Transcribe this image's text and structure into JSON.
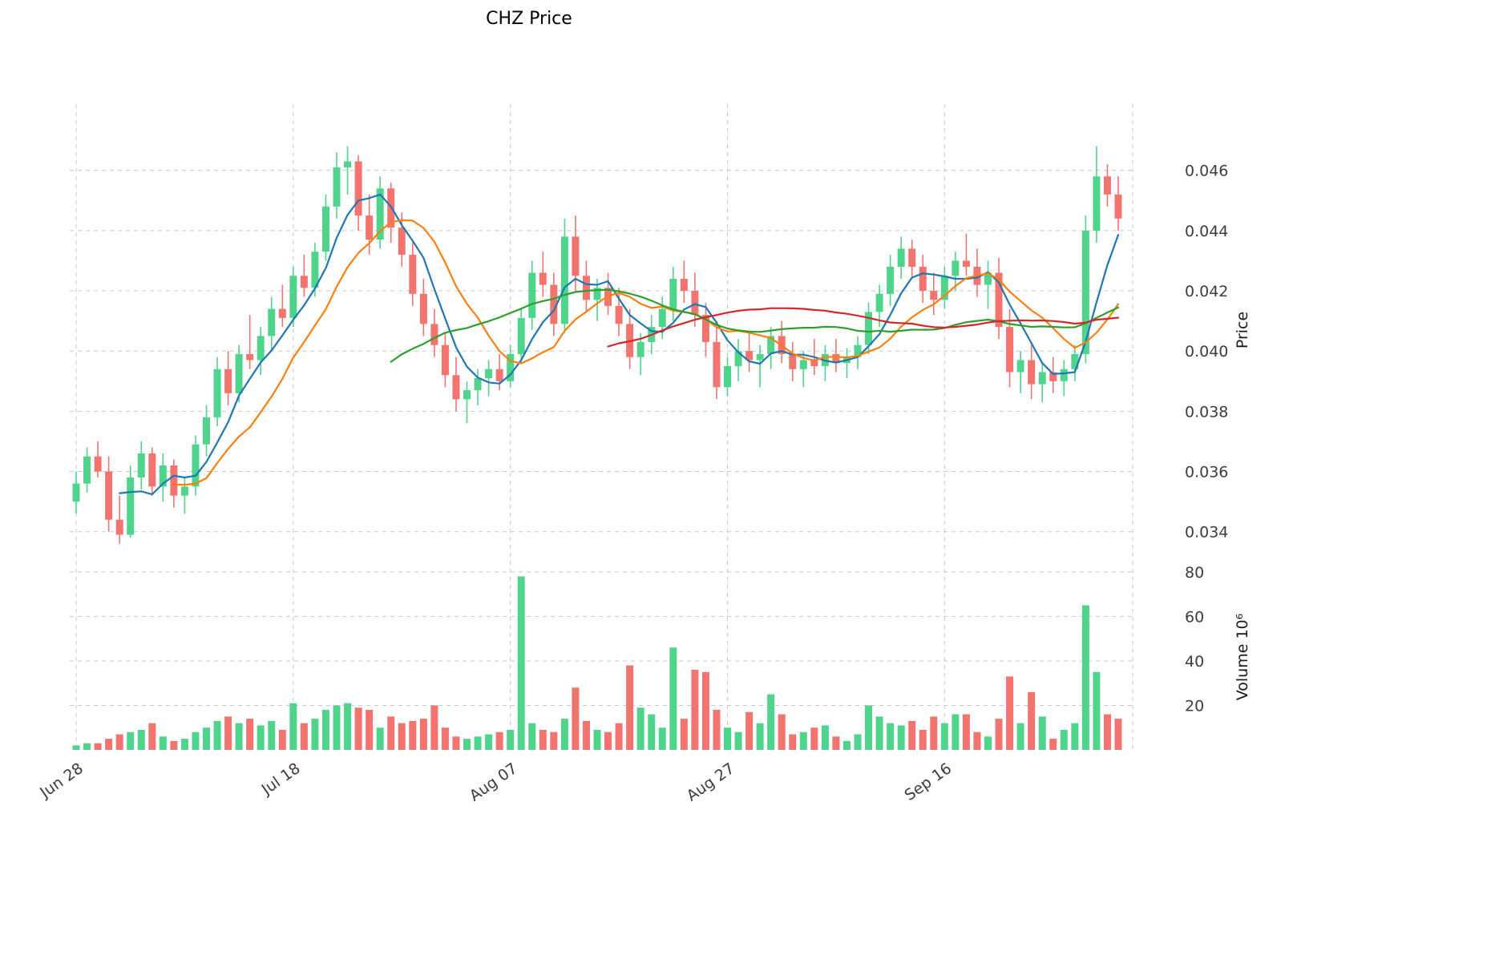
{
  "chart_data": {
    "type": "candlestick",
    "title": "CHZ Price",
    "ylabel": "Price",
    "volume_ylabel": "Volume  10⁶",
    "x_ticks": [
      {
        "index": 0,
        "label": "Jun 28"
      },
      {
        "index": 20,
        "label": "Jul 18"
      },
      {
        "index": 40,
        "label": "Aug 07"
      },
      {
        "index": 60,
        "label": "Aug 27"
      },
      {
        "index": 80,
        "label": "Sep 16"
      }
    ],
    "price_ticks": [
      {
        "value": 0.034,
        "label": "0.034"
      },
      {
        "value": 0.036,
        "label": "0.036"
      },
      {
        "value": 0.038,
        "label": "0.038"
      },
      {
        "value": 0.04,
        "label": "0.040"
      },
      {
        "value": 0.042,
        "label": "0.042"
      },
      {
        "value": 0.044,
        "label": "0.044"
      },
      {
        "value": 0.046,
        "label": "0.046"
      }
    ],
    "volume_ticks": [
      {
        "value": 20,
        "label": "20"
      },
      {
        "value": 40,
        "label": "40"
      },
      {
        "value": 60,
        "label": "60"
      },
      {
        "value": 80,
        "label": "80"
      }
    ],
    "price_range": [
      0.0333,
      0.0482
    ],
    "volume_range": [
      0,
      85
    ],
    "volume_unit": "millions",
    "grid": true,
    "moving_averages": [
      {
        "window": 5,
        "color": "#1f77b4"
      },
      {
        "window": 10,
        "color": "#ff7f0e"
      },
      {
        "window": 30,
        "color": "#2ca02c"
      },
      {
        "window": 50,
        "color": "#d62728"
      }
    ],
    "colors": {
      "up": "#4fd58b",
      "down": "#f3736f",
      "grid": "#c9c9c9",
      "text": "#3d3d3d"
    },
    "candles": {
      "open": [
        0.035,
        0.0356,
        0.0365,
        0.036,
        0.0344,
        0.0339,
        0.0358,
        0.0366,
        0.0355,
        0.0362,
        0.0352,
        0.0355,
        0.0369,
        0.0378,
        0.0394,
        0.0386,
        0.0399,
        0.0397,
        0.0405,
        0.0414,
        0.0411,
        0.0425,
        0.0421,
        0.0433,
        0.0448,
        0.0461,
        0.0463,
        0.0445,
        0.0437,
        0.0454,
        0.0441,
        0.0432,
        0.0419,
        0.0409,
        0.0402,
        0.0392,
        0.0384,
        0.0387,
        0.0391,
        0.0394,
        0.039,
        0.0399,
        0.0411,
        0.0426,
        0.0422,
        0.0409,
        0.0438,
        0.0425,
        0.0417,
        0.0421,
        0.0415,
        0.0409,
        0.0398,
        0.0403,
        0.0408,
        0.0414,
        0.0424,
        0.042,
        0.0412,
        0.0403,
        0.0388,
        0.0395,
        0.04,
        0.0397,
        0.0399,
        0.0405,
        0.0399,
        0.0394,
        0.0397,
        0.0395,
        0.0399,
        0.0396,
        0.0398,
        0.0402,
        0.0413,
        0.0419,
        0.0428,
        0.0434,
        0.0428,
        0.042,
        0.0417,
        0.0425,
        0.043,
        0.0428,
        0.0422,
        0.0426,
        0.0408,
        0.0393,
        0.0397,
        0.0389,
        0.0393,
        0.039,
        0.0394,
        0.0399,
        0.044,
        0.0458,
        0.0452
      ],
      "high": [
        0.036,
        0.0368,
        0.037,
        0.0365,
        0.0352,
        0.0362,
        0.037,
        0.0368,
        0.0366,
        0.0364,
        0.0358,
        0.0372,
        0.0382,
        0.0398,
        0.04,
        0.0402,
        0.0412,
        0.0408,
        0.0418,
        0.0422,
        0.0428,
        0.0432,
        0.0436,
        0.0452,
        0.0466,
        0.0468,
        0.0465,
        0.0452,
        0.0458,
        0.0456,
        0.0446,
        0.0436,
        0.0424,
        0.0414,
        0.0406,
        0.0398,
        0.039,
        0.0394,
        0.0397,
        0.0399,
        0.0402,
        0.0414,
        0.043,
        0.0433,
        0.0426,
        0.0444,
        0.0445,
        0.043,
        0.0424,
        0.0426,
        0.0421,
        0.0414,
        0.0406,
        0.0412,
        0.0418,
        0.0428,
        0.043,
        0.0426,
        0.0416,
        0.041,
        0.0398,
        0.0404,
        0.0406,
        0.0402,
        0.0408,
        0.041,
        0.0403,
        0.04,
        0.0404,
        0.0402,
        0.0404,
        0.0401,
        0.0405,
        0.0416,
        0.0422,
        0.0432,
        0.0438,
        0.0437,
        0.0432,
        0.0426,
        0.0428,
        0.0433,
        0.0439,
        0.0434,
        0.043,
        0.0431,
        0.0414,
        0.04,
        0.0402,
        0.0396,
        0.0398,
        0.0397,
        0.0402,
        0.0445,
        0.0468,
        0.0462,
        0.0458
      ],
      "low": [
        0.0346,
        0.0353,
        0.0358,
        0.034,
        0.0336,
        0.0338,
        0.0354,
        0.0352,
        0.035,
        0.0348,
        0.0346,
        0.0352,
        0.0365,
        0.0375,
        0.0382,
        0.0383,
        0.0394,
        0.0392,
        0.04,
        0.0408,
        0.0408,
        0.0418,
        0.0418,
        0.043,
        0.0444,
        0.0452,
        0.044,
        0.0432,
        0.0434,
        0.0436,
        0.0428,
        0.0415,
        0.0405,
        0.0398,
        0.0388,
        0.038,
        0.0376,
        0.0382,
        0.0385,
        0.0387,
        0.0388,
        0.0396,
        0.0407,
        0.0418,
        0.0405,
        0.0406,
        0.042,
        0.0413,
        0.041,
        0.0412,
        0.0405,
        0.0394,
        0.0392,
        0.0399,
        0.0404,
        0.041,
        0.0416,
        0.0408,
        0.0398,
        0.0384,
        0.0385,
        0.039,
        0.0393,
        0.0388,
        0.0394,
        0.0396,
        0.039,
        0.0388,
        0.0392,
        0.039,
        0.0393,
        0.0391,
        0.0394,
        0.0399,
        0.0408,
        0.0415,
        0.0424,
        0.0424,
        0.0416,
        0.0412,
        0.0414,
        0.042,
        0.0425,
        0.0418,
        0.0414,
        0.0404,
        0.0388,
        0.0386,
        0.0384,
        0.0383,
        0.0386,
        0.0385,
        0.039,
        0.0396,
        0.0436,
        0.0448,
        0.044
      ],
      "close": [
        0.0356,
        0.0365,
        0.036,
        0.0344,
        0.0339,
        0.0358,
        0.0366,
        0.0355,
        0.0362,
        0.0352,
        0.0355,
        0.0369,
        0.0378,
        0.0394,
        0.0386,
        0.0399,
        0.0397,
        0.0405,
        0.0414,
        0.0411,
        0.0425,
        0.0421,
        0.0433,
        0.0448,
        0.0461,
        0.0463,
        0.0445,
        0.0437,
        0.0454,
        0.0441,
        0.0432,
        0.0419,
        0.0409,
        0.0402,
        0.0392,
        0.0384,
        0.0387,
        0.0391,
        0.0394,
        0.039,
        0.0399,
        0.0411,
        0.0426,
        0.0422,
        0.0409,
        0.0438,
        0.0425,
        0.0417,
        0.0421,
        0.0415,
        0.0409,
        0.0398,
        0.0403,
        0.0408,
        0.0414,
        0.0424,
        0.042,
        0.0412,
        0.0403,
        0.0388,
        0.0395,
        0.04,
        0.0397,
        0.0399,
        0.0405,
        0.0399,
        0.0394,
        0.0397,
        0.0395,
        0.0399,
        0.0396,
        0.0398,
        0.0402,
        0.0413,
        0.0419,
        0.0428,
        0.0434,
        0.0428,
        0.042,
        0.0417,
        0.0425,
        0.043,
        0.0428,
        0.0422,
        0.0426,
        0.0408,
        0.0393,
        0.0397,
        0.0389,
        0.0393,
        0.039,
        0.0394,
        0.0399,
        0.044,
        0.0458,
        0.0452,
        0.0444
      ],
      "volume": [
        2,
        3,
        3,
        5,
        7,
        8,
        9,
        12,
        6,
        4,
        5,
        8,
        10,
        13,
        15,
        12,
        14,
        11,
        13,
        9,
        21,
        12,
        14,
        18,
        20,
        21,
        19,
        18,
        10,
        15,
        12,
        13,
        14,
        20,
        10,
        6,
        5,
        6,
        7,
        8,
        9,
        78,
        12,
        9,
        8,
        14,
        28,
        13,
        9,
        8,
        12,
        38,
        19,
        16,
        10,
        46,
        14,
        36,
        35,
        18,
        10,
        8,
        17,
        12,
        25,
        16,
        7,
        8,
        10,
        11,
        6,
        4,
        7,
        20,
        15,
        12,
        11,
        13,
        9,
        15,
        12,
        16,
        16,
        8,
        6,
        14,
        33,
        12,
        26,
        15,
        5,
        9,
        12,
        65,
        35,
        16,
        14
      ]
    }
  }
}
